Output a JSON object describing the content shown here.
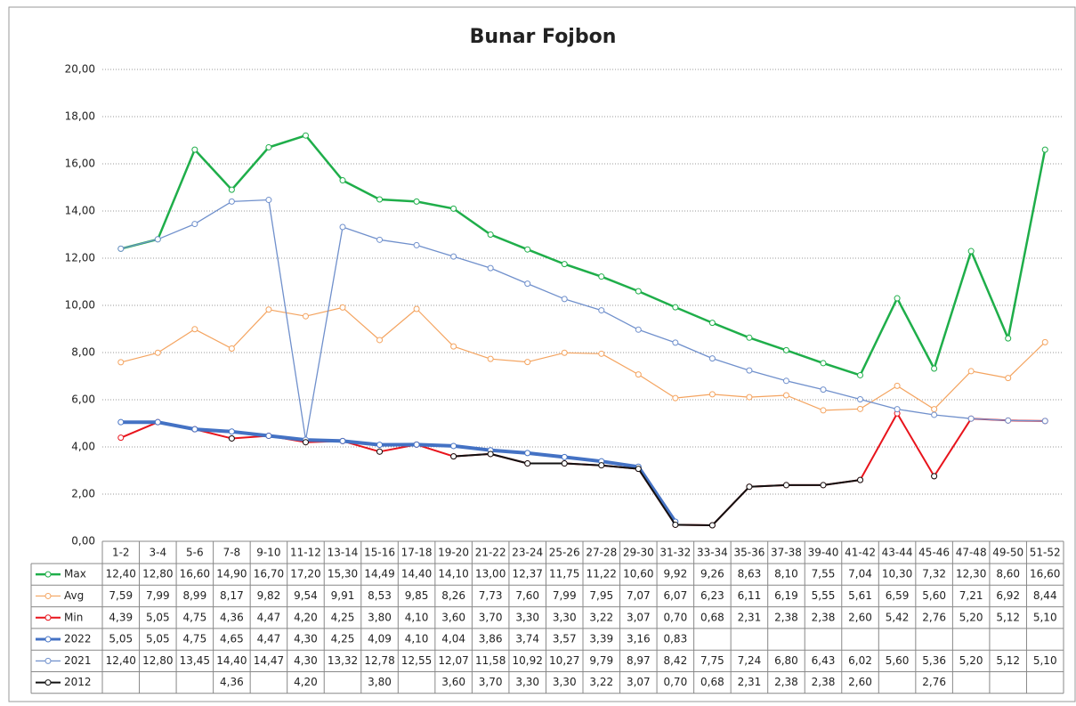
{
  "chart_data": {
    "type": "line",
    "title": "Bunar Fojbon",
    "categories": [
      "1-2",
      "3-4",
      "5-6",
      "7-8",
      "9-10",
      "11-12",
      "13-14",
      "15-16",
      "17-18",
      "19-20",
      "21-22",
      "23-24",
      "25-26",
      "27-28",
      "29-30",
      "31-32",
      "33-34",
      "35-36",
      "37-38",
      "39-40",
      "41-42",
      "43-44",
      "45-46",
      "47-48",
      "49-50",
      "51-52"
    ],
    "ylim": [
      0,
      20
    ],
    "yticks": [
      {
        "value": 0,
        "label": "0,00"
      },
      {
        "value": 2,
        "label": "2,00"
      },
      {
        "value": 4,
        "label": "4,00"
      },
      {
        "value": 6,
        "label": "6,00"
      },
      {
        "value": 8,
        "label": "8,00"
      },
      {
        "value": 10,
        "label": "10,00"
      },
      {
        "value": 12,
        "label": "12,00"
      },
      {
        "value": 14,
        "label": "14,00"
      },
      {
        "value": 16,
        "label": "16,00"
      },
      {
        "value": 18,
        "label": "18,00"
      },
      {
        "value": 20,
        "label": "20,00"
      }
    ],
    "grid": true,
    "series": [
      {
        "name": "Max",
        "color": "#1fae4a",
        "values": [
          12.4,
          12.8,
          16.6,
          14.9,
          16.7,
          17.2,
          15.3,
          14.49,
          14.4,
          14.1,
          13.0,
          12.37,
          11.75,
          11.22,
          10.6,
          9.92,
          9.26,
          8.63,
          8.1,
          7.55,
          7.04,
          10.3,
          7.32,
          12.3,
          8.6,
          16.6
        ],
        "value_labels": [
          "12,40",
          "12,80",
          "16,60",
          "14,90",
          "16,70",
          "17,20",
          "15,30",
          "14,49",
          "14,40",
          "14,10",
          "13,00",
          "12,37",
          "11,75",
          "11,22",
          "10,60",
          "9,92",
          "9,26",
          "8,63",
          "8,10",
          "7,55",
          "7,04",
          "10,30",
          "7,32",
          "12,30",
          "8,60",
          "16,60"
        ]
      },
      {
        "name": "Avg",
        "color": "#f4a460",
        "values": [
          7.59,
          7.99,
          8.99,
          8.17,
          9.82,
          9.54,
          9.91,
          8.53,
          9.85,
          8.26,
          7.73,
          7.6,
          7.99,
          7.95,
          7.07,
          6.07,
          6.23,
          6.11,
          6.19,
          5.55,
          5.61,
          6.59,
          5.6,
          7.21,
          6.92,
          8.44
        ],
        "value_labels": [
          "7,59",
          "7,99",
          "8,99",
          "8,17",
          "9,82",
          "9,54",
          "9,91",
          "8,53",
          "9,85",
          "8,26",
          "7,73",
          "7,60",
          "7,99",
          "7,95",
          "7,07",
          "6,07",
          "6,23",
          "6,11",
          "6,19",
          "5,55",
          "5,61",
          "6,59",
          "5,60",
          "7,21",
          "6,92",
          "8,44"
        ]
      },
      {
        "name": "Min",
        "color": "#e8141c",
        "values": [
          4.39,
          5.05,
          4.75,
          4.36,
          4.47,
          4.2,
          4.25,
          3.8,
          4.1,
          3.6,
          3.7,
          3.3,
          3.3,
          3.22,
          3.07,
          0.7,
          0.68,
          2.31,
          2.38,
          2.38,
          2.6,
          5.42,
          2.76,
          5.2,
          5.12,
          5.1
        ],
        "value_labels": [
          "4,39",
          "5,05",
          "4,75",
          "4,36",
          "4,47",
          "4,20",
          "4,25",
          "3,80",
          "4,10",
          "3,60",
          "3,70",
          "3,30",
          "3,30",
          "3,22",
          "3,07",
          "0,70",
          "0,68",
          "2,31",
          "2,38",
          "2,38",
          "2,60",
          "5,42",
          "2,76",
          "5,20",
          "5,12",
          "5,10"
        ]
      },
      {
        "name": "2022",
        "color": "#4472c4",
        "values": [
          5.05,
          5.05,
          4.75,
          4.65,
          4.47,
          4.3,
          4.25,
          4.09,
          4.1,
          4.04,
          3.86,
          3.74,
          3.57,
          3.39,
          3.16,
          0.83,
          null,
          null,
          null,
          null,
          null,
          null,
          null,
          null,
          null,
          null
        ],
        "value_labels": [
          "5,05",
          "5,05",
          "4,75",
          "4,65",
          "4,47",
          "4,30",
          "4,25",
          "4,09",
          "4,10",
          "4,04",
          "3,86",
          "3,74",
          "3,57",
          "3,39",
          "3,16",
          "0,83",
          null,
          null,
          null,
          null,
          null,
          null,
          null,
          null,
          null,
          null
        ]
      },
      {
        "name": "2021",
        "color": "#7090cc",
        "values": [
          12.4,
          12.8,
          13.45,
          14.4,
          14.47,
          4.3,
          13.32,
          12.78,
          12.55,
          12.07,
          11.58,
          10.92,
          10.27,
          9.79,
          8.97,
          8.42,
          7.75,
          7.24,
          6.8,
          6.43,
          6.02,
          5.6,
          5.36,
          5.2,
          5.12,
          5.1
        ],
        "value_labels": [
          "12,40",
          "12,80",
          "13,45",
          "14,40",
          "14,47",
          "4,30",
          "13,32",
          "12,78",
          "12,55",
          "12,07",
          "11,58",
          "10,92",
          "10,27",
          "9,79",
          "8,97",
          "8,42",
          "7,75",
          "7,24",
          "6,80",
          "6,43",
          "6,02",
          "5,60",
          "5,36",
          "5,20",
          "5,12",
          "5,10"
        ]
      },
      {
        "name": "2012",
        "color": "#111111",
        "values": [
          null,
          null,
          null,
          4.36,
          null,
          4.2,
          null,
          3.8,
          null,
          3.6,
          3.7,
          3.3,
          3.3,
          3.22,
          3.07,
          0.7,
          0.68,
          2.31,
          2.38,
          2.38,
          2.6,
          null,
          2.76,
          null,
          null,
          null
        ],
        "value_labels": [
          null,
          null,
          null,
          "4,36",
          null,
          "4,20",
          null,
          "3,80",
          null,
          "3,60",
          "3,70",
          "3,30",
          "3,30",
          "3,22",
          "3,07",
          "0,70",
          "0,68",
          "2,31",
          "2,38",
          "2,38",
          "2,60",
          null,
          "2,76",
          null,
          null,
          null
        ]
      }
    ]
  }
}
